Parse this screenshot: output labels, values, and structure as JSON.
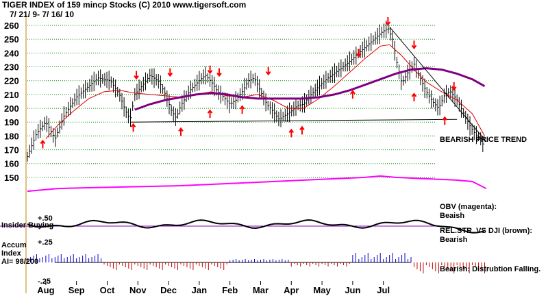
{
  "header": {
    "title": "TIGER INDEX of  159 mincp Stocks  (C) 2010  www.tigersoft.com",
    "date_range": "7/ 21/ 9- 7/ 16/ 10"
  },
  "side_notes": {
    "trend": "BEARISH PRICE TREND",
    "obv_title": "OBV (magenta):",
    "obv_value": "Beaish",
    "relstr_title": "REL.STR..VS DJI (brown):",
    "relstr_value": "Bearish",
    "accum_note": "Bearish: Distrubtion Falling."
  },
  "indicator_labels": {
    "insider": "Insider Buying",
    "accum_title": "Accum",
    "accum_index": "Index",
    "ai": "AI= 98/200",
    "plus50": "+.50",
    "plus25": "+.25",
    "minus25": "-.25"
  },
  "colors": {
    "price": "#000000",
    "ma_short": "#e00000",
    "ma_long": "#800080",
    "obv": "#ff00ff",
    "relstr": "#000000",
    "accum_pos": "#0000c8",
    "accum_neg": "#c80000",
    "arrow": "#ff0000",
    "grid": "#009000",
    "zero_line": "#8000c0"
  },
  "chart_data": {
    "type": "line",
    "months": [
      "Aug",
      "Sep",
      "Oct",
      "Nov",
      "Dec",
      "Jan",
      "Feb",
      "Mar",
      "Apr",
      "May",
      "Jun",
      "Jul"
    ],
    "y_ticks": [
      150,
      160,
      170,
      180,
      190,
      200,
      210,
      220,
      230,
      240,
      250,
      260
    ],
    "ylim": [
      145,
      263
    ],
    "price": [
      [
        0,
        165
      ],
      [
        0.3,
        182
      ],
      [
        0.6,
        190
      ],
      [
        0.9,
        178
      ],
      [
        1.2,
        195
      ],
      [
        1.6,
        208
      ],
      [
        2.0,
        216
      ],
      [
        2.3,
        222
      ],
      [
        2.7,
        220
      ],
      [
        3.0,
        210
      ],
      [
        3.2,
        198
      ],
      [
        3.35,
        192
      ],
      [
        3.5,
        210
      ],
      [
        3.8,
        218
      ],
      [
        4.0,
        224
      ],
      [
        4.3,
        219
      ],
      [
        4.5,
        210
      ],
      [
        4.7,
        198
      ],
      [
        4.85,
        193
      ],
      [
        5.0,
        202
      ],
      [
        5.3,
        213
      ],
      [
        5.6,
        220
      ],
      [
        5.8,
        224
      ],
      [
        6.0,
        219
      ],
      [
        6.2,
        212
      ],
      [
        6.4,
        208
      ],
      [
        6.6,
        203
      ],
      [
        6.8,
        206
      ],
      [
        7.0,
        212
      ],
      [
        7.2,
        220
      ],
      [
        7.4,
        222
      ],
      [
        7.6,
        212
      ],
      [
        7.8,
        203
      ],
      [
        8.0,
        198
      ],
      [
        8.2,
        192
      ],
      [
        8.4,
        195
      ],
      [
        8.6,
        198
      ],
      [
        8.8,
        202
      ],
      [
        9.0,
        203
      ],
      [
        9.2,
        209
      ],
      [
        9.5,
        216
      ],
      [
        9.8,
        222
      ],
      [
        10.1,
        227
      ],
      [
        10.4,
        232
      ],
      [
        10.7,
        238
      ],
      [
        11.0,
        244
      ],
      [
        11.3,
        250
      ],
      [
        11.55,
        255
      ],
      [
        11.75,
        258
      ],
      [
        11.9,
        250
      ],
      [
        12.05,
        232
      ],
      [
        12.2,
        218
      ],
      [
        12.4,
        226
      ],
      [
        12.6,
        232
      ],
      [
        12.8,
        222
      ],
      [
        13.0,
        212
      ],
      [
        13.2,
        205
      ],
      [
        13.4,
        200
      ],
      [
        13.6,
        210
      ],
      [
        13.8,
        212
      ],
      [
        14.0,
        206
      ],
      [
        14.2,
        197
      ],
      [
        14.4,
        188
      ],
      [
        14.6,
        181
      ],
      [
        14.75,
        179
      ],
      [
        14.9,
        171
      ]
    ],
    "ma_short": [
      [
        0.6,
        178
      ],
      [
        1.0,
        188
      ],
      [
        1.5,
        198
      ],
      [
        2.0,
        207
      ],
      [
        2.5,
        212
      ],
      [
        3.0,
        213
      ],
      [
        3.5,
        211
      ],
      [
        4.0,
        210
      ],
      [
        4.5,
        209
      ],
      [
        5.0,
        208
      ],
      [
        5.5,
        210
      ],
      [
        6.0,
        212
      ],
      [
        6.5,
        209
      ],
      [
        7.0,
        208
      ],
      [
        7.5,
        210
      ],
      [
        8.0,
        206
      ],
      [
        8.5,
        200
      ],
      [
        9.0,
        200
      ],
      [
        9.5,
        207
      ],
      [
        10.0,
        216
      ],
      [
        10.5,
        226
      ],
      [
        11.0,
        236
      ],
      [
        11.5,
        245
      ],
      [
        11.8,
        246
      ],
      [
        12.2,
        238
      ],
      [
        12.6,
        228
      ],
      [
        13.0,
        219
      ],
      [
        13.5,
        212
      ],
      [
        14.0,
        206
      ],
      [
        14.5,
        196
      ],
      [
        14.9,
        180
      ]
    ],
    "ma_long": [
      [
        3.5,
        199
      ],
      [
        4.0,
        203
      ],
      [
        4.5,
        206
      ],
      [
        5.0,
        208
      ],
      [
        5.5,
        210
      ],
      [
        6.0,
        211
      ],
      [
        6.5,
        210
      ],
      [
        7.0,
        208
      ],
      [
        7.5,
        207
      ],
      [
        8.0,
        207
      ],
      [
        8.5,
        207
      ],
      [
        9.0,
        207
      ],
      [
        9.5,
        208
      ],
      [
        10.0,
        210
      ],
      [
        10.5,
        213
      ],
      [
        11.0,
        217
      ],
      [
        11.5,
        221
      ],
      [
        12.0,
        225
      ],
      [
        12.5,
        228
      ],
      [
        13.0,
        229
      ],
      [
        13.5,
        228
      ],
      [
        14.0,
        225
      ],
      [
        14.5,
        221
      ],
      [
        14.9,
        216
      ]
    ],
    "support_line": [
      [
        3.35,
        190
      ],
      [
        14.0,
        192
      ]
    ],
    "downtrend_line": [
      [
        11.8,
        259
      ],
      [
        14.95,
        176
      ]
    ],
    "obv": [
      [
        0,
        140
      ],
      [
        1,
        142
      ],
      [
        2,
        142.5
      ],
      [
        3,
        143
      ],
      [
        4,
        143.5
      ],
      [
        5,
        144
      ],
      [
        6,
        145
      ],
      [
        7,
        146
      ],
      [
        8,
        147
      ],
      [
        9,
        148
      ],
      [
        10,
        149
      ],
      [
        11,
        150
      ],
      [
        11.5,
        151
      ],
      [
        12,
        150
      ],
      [
        12.5,
        149.5
      ],
      [
        13,
        149
      ],
      [
        13.5,
        148.5
      ],
      [
        14,
        148
      ],
      [
        14.5,
        147
      ],
      [
        14.95,
        142
      ]
    ],
    "sell_arrows": [
      [
        3.55,
        224
      ],
      [
        4.65,
        226
      ],
      [
        5.95,
        228
      ],
      [
        6.25,
        226
      ],
      [
        7.85,
        227
      ],
      [
        10.8,
        240
      ],
      [
        11.75,
        263
      ],
      [
        12.6,
        246
      ],
      [
        13.9,
        216
      ]
    ],
    "buy_arrows": [
      [
        0.5,
        174
      ],
      [
        3.45,
        186
      ],
      [
        5.0,
        183
      ],
      [
        5.95,
        196
      ],
      [
        7.0,
        199
      ],
      [
        8.6,
        182
      ],
      [
        8.95,
        184
      ],
      [
        10.6,
        210
      ],
      [
        12.6,
        208
      ],
      [
        13.6,
        191
      ]
    ]
  }
}
